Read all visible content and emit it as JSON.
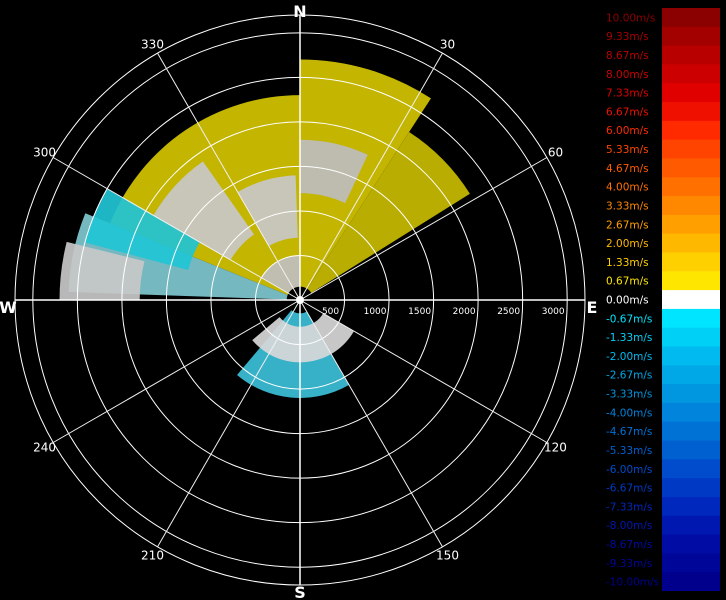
{
  "chart_data": {
    "type": "polar-heatmap",
    "title": "",
    "quantity_unit": "m/s",
    "cardinal_labels": {
      "N": "N",
      "E": "E",
      "S": "S",
      "W": "W"
    },
    "azimuth_ticks": [
      30,
      60,
      120,
      150,
      210,
      240,
      300,
      330
    ],
    "range_ticks": [
      500,
      1000,
      1500,
      2000,
      2500,
      3000
    ],
    "range_max": 3200,
    "grid": true,
    "legend_position": "right",
    "colorbar": {
      "labels": [
        "10.00m/s",
        "9.33m/s",
        "8.67m/s",
        "8.00m/s",
        "7.33m/s",
        "6.67m/s",
        "6.00m/s",
        "5.33m/s",
        "4.67m/s",
        "4.00m/s",
        "3.33m/s",
        "2.67m/s",
        "2.00m/s",
        "1.33m/s",
        "0.67m/s",
        "0.00m/s",
        "-0.67m/s",
        "-1.33m/s",
        "-2.00m/s",
        "-2.67m/s",
        "-3.33m/s",
        "-4.00m/s",
        "-4.67m/s",
        "-5.33m/s",
        "-6.00m/s",
        "-6.67m/s",
        "-7.33m/s",
        "-8.00m/s",
        "-8.67m/s",
        "-9.33m/s",
        "-10.00m/s"
      ],
      "colors": [
        "#8b0000",
        "#a30000",
        "#b80000",
        "#cc0000",
        "#e00000",
        "#f01000",
        "#ff2a00",
        "#ff4400",
        "#ff5a00",
        "#ff7000",
        "#ff8800",
        "#ffa000",
        "#ffb800",
        "#ffd000",
        "#ffe600",
        "#ffffff",
        "#00e5ff",
        "#00d0f5",
        "#00baf0",
        "#00a8e8",
        "#0096e0",
        "#0084dc",
        "#0072d6",
        "#0060d0",
        "#004ccc",
        "#003ac4",
        "#0028bc",
        "#0018b0",
        "#000ca4",
        "#000698",
        "#00008c"
      ],
      "text_colors": [
        "#8b0000",
        "#a30000",
        "#b80000",
        "#cc0000",
        "#e00000",
        "#f01000",
        "#ff2a00",
        "#ff4400",
        "#ff5a00",
        "#ff7000",
        "#ff8800",
        "#ffa000",
        "#ffb800",
        "#ffd000",
        "#ffe600",
        "#ffffff",
        "#00e5ff",
        "#00d0f5",
        "#00baf0",
        "#00a8e8",
        "#0096e0",
        "#0084dc",
        "#0072d6",
        "#0060d0",
        "#004ccc",
        "#003ac4",
        "#0028bc",
        "#0018b0",
        "#000ca4",
        "#000698",
        "#00008c"
      ]
    },
    "sectors": [
      {
        "az_start": 292,
        "az_end": 360,
        "r_start": 150,
        "r_end": 2300,
        "value": 1.33,
        "color": "#d4c400"
      },
      {
        "az_start": 0,
        "az_end": 33,
        "r_start": 150,
        "r_end": 2700,
        "value": 1.33,
        "color": "#d4c400"
      },
      {
        "az_start": 33,
        "az_end": 58,
        "r_start": 150,
        "r_end": 2250,
        "value": 1.0,
        "color": "#c8bc00"
      },
      {
        "az_start": 272,
        "az_end": 292,
        "r_start": 150,
        "r_end": 2600,
        "value": -1.33,
        "color": "#7fc8d0"
      },
      {
        "az_start": 330,
        "az_end": 358,
        "r_start": 700,
        "r_end": 1400,
        "value": 0.0,
        "color": "#c8c8c8"
      },
      {
        "az_start": 300,
        "az_end": 325,
        "r_start": 900,
        "r_end": 1900,
        "value": 0.0,
        "color": "#c8c8c8"
      },
      {
        "az_start": 0,
        "az_end": 25,
        "r_start": 1200,
        "r_end": 1800,
        "value": 0.0,
        "color": "#bdbdbd"
      },
      {
        "az_start": 285,
        "az_end": 300,
        "r_start": 1300,
        "r_end": 2500,
        "value": -2.0,
        "color": "#21c4d6"
      },
      {
        "az_start": 270,
        "az_end": 284,
        "r_start": 1800,
        "r_end": 2700,
        "value": 0.0,
        "color": "#c8c8c8"
      },
      {
        "az_start": 300,
        "az_end": 360,
        "r_start": 150,
        "r_end": 500,
        "value": 0.0,
        "color": "#bfbfbf"
      },
      {
        "az_start": 150,
        "az_end": 220,
        "r_start": 150,
        "r_end": 1100,
        "value": -1.33,
        "color": "#3cc0d8"
      },
      {
        "az_start": 120,
        "az_end": 230,
        "r_start": 300,
        "r_end": 700,
        "value": 0.0,
        "color": "#d8d8d8"
      }
    ]
  }
}
